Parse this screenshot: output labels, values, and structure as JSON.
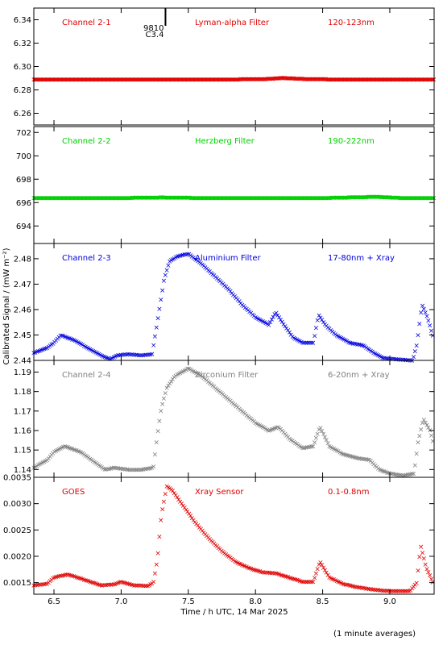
{
  "figure": {
    "ylabel": "Calibrated Signal / (mW m⁻²)",
    "xlabel": "Time / h UTC, 14 Mar 2025",
    "footer": "(1 minute averages)",
    "xlim": [
      6.35,
      9.33
    ],
    "xticks": [
      6.5,
      7.0,
      7.5,
      8.0,
      8.5,
      9.0
    ],
    "xtick_labels": [
      "6.5",
      "7.0",
      "7.5",
      "8.0",
      "8.5",
      "9.0"
    ],
    "event_marker": {
      "x": 7.33,
      "label_top": "9810",
      "label_bottom": "C3.4"
    }
  },
  "chart_data": [
    {
      "type": "scatter",
      "channel": "Channel 2-1",
      "filter": "Lyman-alpha Filter",
      "band": "120-123nm",
      "color": "#e00000",
      "ylim": [
        6.25,
        6.35
      ],
      "yticks": [
        6.26,
        6.28,
        6.3,
        6.32,
        6.34
      ],
      "ytick_labels": [
        "6.26",
        "6.28",
        "6.30",
        "6.32",
        "6.34"
      ],
      "points": [
        [
          6.35,
          6.289
        ],
        [
          6.6,
          6.289
        ],
        [
          6.9,
          6.289
        ],
        [
          7.2,
          6.289
        ],
        [
          7.5,
          6.289
        ],
        [
          7.8,
          6.289
        ],
        [
          8.1,
          6.2895
        ],
        [
          8.2,
          6.2903
        ],
        [
          8.35,
          6.2895
        ],
        [
          8.6,
          6.289
        ],
        [
          8.9,
          6.289
        ],
        [
          9.1,
          6.289
        ],
        [
          9.33,
          6.289
        ]
      ]
    },
    {
      "type": "scatter",
      "channel": "Channel 2-2",
      "filter": "Herzberg Filter",
      "band": "190-222nm",
      "color": "#00d000",
      "ylim": [
        692.5,
        702.5
      ],
      "yticks": [
        694,
        696,
        698,
        700,
        702
      ],
      "ytick_labels": [
        "694",
        "696",
        "698",
        "700",
        "702"
      ],
      "points": [
        [
          6.35,
          696.4
        ],
        [
          6.7,
          696.4
        ],
        [
          7.0,
          696.4
        ],
        [
          7.3,
          696.45
        ],
        [
          7.6,
          696.4
        ],
        [
          8.0,
          696.4
        ],
        [
          8.5,
          696.4
        ],
        [
          8.9,
          696.5
        ],
        [
          9.1,
          696.4
        ],
        [
          9.33,
          696.4
        ]
      ]
    },
    {
      "type": "scatter",
      "channel": "Channel 2-3",
      "filter": "Aluminium Filter",
      "band": "17-80nm + Xray",
      "color": "#0000e0",
      "ylim": [
        2.44,
        2.486
      ],
      "yticks": [
        2.44,
        2.45,
        2.46,
        2.47,
        2.48
      ],
      "ytick_labels": [
        "2.44",
        "2.45",
        "2.46",
        "2.47",
        "2.48"
      ],
      "points": [
        [
          6.35,
          2.443
        ],
        [
          6.45,
          2.445
        ],
        [
          6.5,
          2.447
        ],
        [
          6.55,
          2.45
        ],
        [
          6.65,
          2.448
        ],
        [
          6.75,
          2.445
        ],
        [
          6.85,
          2.442
        ],
        [
          6.92,
          2.4405
        ],
        [
          6.97,
          2.442
        ],
        [
          7.05,
          2.4425
        ],
        [
          7.15,
          2.442
        ],
        [
          7.23,
          2.4425
        ],
        [
          7.26,
          2.452
        ],
        [
          7.29,
          2.462
        ],
        [
          7.32,
          2.472
        ],
        [
          7.36,
          2.479
        ],
        [
          7.42,
          2.481
        ],
        [
          7.5,
          2.482
        ],
        [
          7.6,
          2.478
        ],
        [
          7.7,
          2.473
        ],
        [
          7.8,
          2.468
        ],
        [
          7.9,
          2.462
        ],
        [
          8.0,
          2.457
        ],
        [
          8.1,
          2.454
        ],
        [
          8.15,
          2.459
        ],
        [
          8.2,
          2.455
        ],
        [
          8.28,
          2.449
        ],
        [
          8.35,
          2.447
        ],
        [
          8.43,
          2.447
        ],
        [
          8.47,
          2.458
        ],
        [
          8.52,
          2.454
        ],
        [
          8.6,
          2.45
        ],
        [
          8.7,
          2.447
        ],
        [
          8.8,
          2.446
        ],
        [
          8.88,
          2.443
        ],
        [
          8.95,
          2.441
        ],
        [
          9.05,
          2.4405
        ],
        [
          9.17,
          2.44
        ],
        [
          9.2,
          2.446
        ],
        [
          9.24,
          2.462
        ],
        [
          9.28,
          2.457
        ],
        [
          9.33,
          2.448
        ]
      ]
    },
    {
      "type": "scatter",
      "channel": "Channel 2-4",
      "filter": "Zirconium Filter",
      "band": "6-20nm + Xray",
      "color": "#808080",
      "ylim": [
        1.136,
        1.196
      ],
      "yticks": [
        1.14,
        1.15,
        1.16,
        1.17,
        1.18,
        1.19
      ],
      "ytick_labels": [
        "1.14",
        "1.15",
        "1.16",
        "1.17",
        "1.18",
        "1.19"
      ],
      "points": [
        [
          6.35,
          1.141
        ],
        [
          6.45,
          1.145
        ],
        [
          6.5,
          1.149
        ],
        [
          6.58,
          1.152
        ],
        [
          6.7,
          1.149
        ],
        [
          6.8,
          1.144
        ],
        [
          6.88,
          1.14
        ],
        [
          6.95,
          1.141
        ],
        [
          7.05,
          1.14
        ],
        [
          7.15,
          1.14
        ],
        [
          7.24,
          1.141
        ],
        [
          7.27,
          1.158
        ],
        [
          7.3,
          1.172
        ],
        [
          7.34,
          1.182
        ],
        [
          7.4,
          1.188
        ],
        [
          7.5,
          1.192
        ],
        [
          7.6,
          1.188
        ],
        [
          7.7,
          1.182
        ],
        [
          7.8,
          1.176
        ],
        [
          7.9,
          1.17
        ],
        [
          8.0,
          1.164
        ],
        [
          8.1,
          1.16
        ],
        [
          8.17,
          1.162
        ],
        [
          8.25,
          1.156
        ],
        [
          8.35,
          1.151
        ],
        [
          8.43,
          1.152
        ],
        [
          8.48,
          1.162
        ],
        [
          8.55,
          1.152
        ],
        [
          8.65,
          1.148
        ],
        [
          8.75,
          1.146
        ],
        [
          8.85,
          1.145
        ],
        [
          8.92,
          1.14
        ],
        [
          9.0,
          1.138
        ],
        [
          9.1,
          1.137
        ],
        [
          9.18,
          1.138
        ],
        [
          9.21,
          1.154
        ],
        [
          9.25,
          1.166
        ],
        [
          9.3,
          1.16
        ],
        [
          9.33,
          1.152
        ]
      ]
    },
    {
      "type": "scatter",
      "channel": "GOES",
      "filter": "Xray Sensor",
      "band": "0.1-0.8nm",
      "color": "#e00000",
      "ylim": [
        0.00128,
        0.0035
      ],
      "yticks": [
        0.0015,
        0.002,
        0.0025,
        0.003,
        0.0035
      ],
      "ytick_labels": [
        "0.0015",
        "0.0020",
        "0.0025",
        "0.0030",
        "0.0035"
      ],
      "points": [
        [
          6.35,
          0.00145
        ],
        [
          6.45,
          0.00148
        ],
        [
          6.5,
          0.0016
        ],
        [
          6.6,
          0.00166
        ],
        [
          6.7,
          0.00158
        ],
        [
          6.85,
          0.00145
        ],
        [
          6.95,
          0.00147
        ],
        [
          7.0,
          0.00152
        ],
        [
          7.1,
          0.00145
        ],
        [
          7.2,
          0.00144
        ],
        [
          7.24,
          0.0015
        ],
        [
          7.27,
          0.00195
        ],
        [
          7.3,
          0.0028
        ],
        [
          7.34,
          0.00333
        ],
        [
          7.38,
          0.00326
        ],
        [
          7.45,
          0.003
        ],
        [
          7.55,
          0.00265
        ],
        [
          7.65,
          0.00235
        ],
        [
          7.75,
          0.0021
        ],
        [
          7.85,
          0.0019
        ],
        [
          7.95,
          0.00178
        ],
        [
          8.05,
          0.0017
        ],
        [
          8.15,
          0.00168
        ],
        [
          8.25,
          0.0016
        ],
        [
          8.35,
          0.00152
        ],
        [
          8.43,
          0.00152
        ],
        [
          8.48,
          0.0019
        ],
        [
          8.55,
          0.0016
        ],
        [
          8.65,
          0.00148
        ],
        [
          8.75,
          0.00142
        ],
        [
          8.85,
          0.00138
        ],
        [
          8.95,
          0.00135
        ],
        [
          9.05,
          0.00134
        ],
        [
          9.15,
          0.00134
        ],
        [
          9.2,
          0.0015
        ],
        [
          9.23,
          0.0022
        ],
        [
          9.27,
          0.0018
        ],
        [
          9.33,
          0.00145
        ]
      ]
    }
  ]
}
